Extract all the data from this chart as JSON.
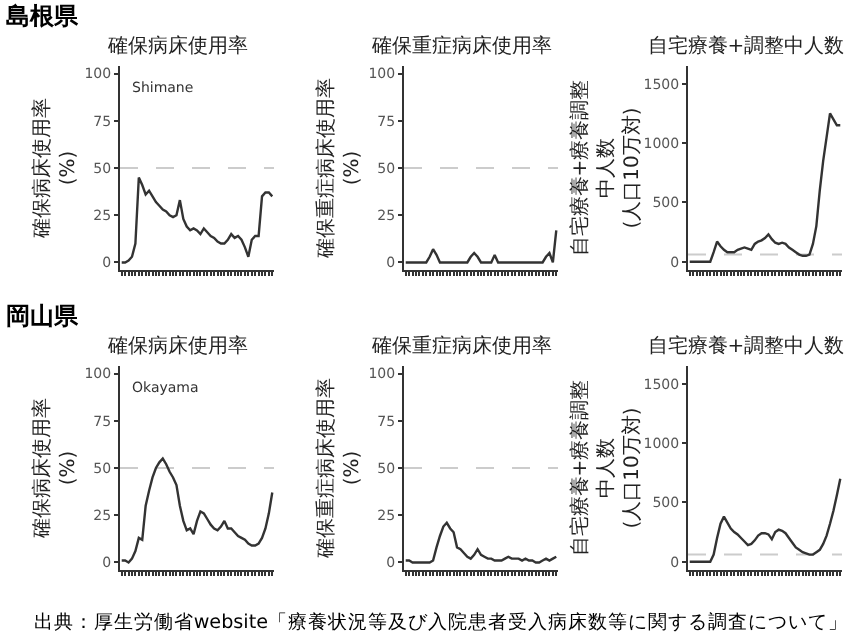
{
  "chart_data": [
    {
      "type": "line",
      "title": "確保病床使用率",
      "ylabel": "確保病床使用率(%)",
      "annotations": [
        "島根県",
        "Shimane"
      ],
      "tick_labels": "y",
      "color": "#333333",
      "categories": [
        null,
        null,
        null,
        null,
        null,
        null,
        null,
        null,
        null,
        null,
        null,
        null,
        null,
        null,
        null,
        null,
        null,
        null,
        null,
        null,
        null,
        null,
        null,
        null,
        null,
        null,
        null,
        null,
        null,
        null,
        null,
        null,
        null,
        null,
        null,
        null,
        null,
        null,
        null,
        null,
        null,
        null,
        null,
        null,
        null
      ],
      "values": [
        0,
        0,
        1,
        3,
        10,
        45,
        41,
        36,
        38,
        35,
        32,
        30,
        28,
        27,
        25,
        24,
        25,
        33,
        23,
        19,
        17,
        18,
        17,
        15,
        18,
        16,
        14,
        13,
        11,
        10,
        10,
        12,
        15,
        13,
        14,
        12,
        8,
        3,
        12,
        14,
        14,
        35,
        37,
        37,
        35
      ],
      "ylim": [
        -4,
        104
      ],
      "yticks": [
        0,
        25,
        50,
        75,
        100
      ],
      "ref_lines": [
        {
          "axis": "y",
          "value": 50,
          "label": null,
          "color": "#cccccc",
          "line_style": "dashed"
        }
      ]
    },
    {
      "type": "line",
      "title": "確保重症病床使用率",
      "ylabel": "確保重症病床使用率(%)",
      "tick_labels": "y",
      "color": "#333333",
      "categories": [
        null,
        null,
        null,
        null,
        null,
        null,
        null,
        null,
        null,
        null,
        null,
        null,
        null,
        null,
        null,
        null,
        null,
        null,
        null,
        null,
        null,
        null,
        null,
        null,
        null,
        null,
        null,
        null,
        null,
        null,
        null,
        null,
        null,
        null,
        null,
        null,
        null,
        null,
        null,
        null,
        null,
        null,
        null,
        null,
        null
      ],
      "values": [
        0,
        0,
        0,
        0,
        0,
        0,
        0,
        3,
        7,
        4,
        0,
        0,
        0,
        0,
        0,
        0,
        0,
        0,
        0,
        3,
        5,
        3,
        0,
        0,
        0,
        0,
        4,
        0,
        0,
        0,
        0,
        0,
        0,
        0,
        0,
        0,
        0,
        0,
        0,
        0,
        0,
        3,
        5,
        0,
        17
      ],
      "ylim": [
        -4,
        104
      ],
      "yticks": [
        0,
        25,
        50,
        75,
        100
      ],
      "ref_lines": [
        {
          "axis": "y",
          "value": 50,
          "label": null,
          "color": "#cccccc",
          "line_style": "dashed"
        }
      ]
    },
    {
      "type": "line",
      "title": "自宅療養+調整中人数",
      "ylabel": "自宅療養+療養調整中人数(人口10万対)",
      "tick_labels": "y",
      "color": "#333333",
      "categories": [
        null,
        null,
        null,
        null,
        null,
        null,
        null,
        null,
        null,
        null,
        null,
        null,
        null,
        null,
        null,
        null,
        null,
        null,
        null,
        null,
        null,
        null,
        null,
        null,
        null,
        null,
        null,
        null,
        null,
        null,
        null,
        null,
        null,
        null,
        null,
        null,
        null,
        null,
        null,
        null,
        null,
        null,
        null,
        null,
        null
      ],
      "values": [
        0,
        0,
        0,
        0,
        0,
        0,
        0,
        80,
        170,
        130,
        100,
        80,
        80,
        80,
        100,
        110,
        120,
        110,
        100,
        150,
        170,
        180,
        200,
        230,
        190,
        160,
        150,
        160,
        150,
        120,
        100,
        80,
        60,
        50,
        50,
        60,
        150,
        300,
        600,
        850,
        1050,
        1250,
        1200,
        1150,
        1150
      ],
      "ylim": [
        -70,
        1650
      ],
      "yticks": [
        0,
        500,
        1000,
        1500
      ],
      "ref_lines": [
        {
          "axis": "y",
          "value": 60,
          "label": null,
          "color": "#cccccc",
          "line_style": "dashed"
        }
      ]
    },
    {
      "type": "line",
      "title": "確保病床使用率",
      "ylabel": "確保病床使用率(%)",
      "annotations": [
        "岡山県",
        "Okayama"
      ],
      "tick_labels": "y",
      "color": "#333333",
      "categories": [
        null,
        null,
        null,
        null,
        null,
        null,
        null,
        null,
        null,
        null,
        null,
        null,
        null,
        null,
        null,
        null,
        null,
        null,
        null,
        null,
        null,
        null,
        null,
        null,
        null,
        null,
        null,
        null,
        null,
        null,
        null,
        null,
        null,
        null,
        null,
        null,
        null,
        null,
        null,
        null,
        null,
        null,
        null,
        null,
        null
      ],
      "values": [
        1,
        1,
        0,
        2,
        6,
        13,
        12,
        30,
        38,
        45,
        50,
        53,
        55,
        52,
        48,
        45,
        41,
        30,
        22,
        17,
        18,
        15,
        22,
        27,
        26,
        23,
        20,
        18,
        17,
        19,
        22,
        18,
        18,
        16,
        14,
        13,
        12,
        10,
        9,
        9,
        10,
        13,
        18,
        26,
        37
      ],
      "ylim": [
        -4,
        104
      ],
      "yticks": [
        0,
        25,
        50,
        75,
        100
      ],
      "ref_lines": [
        {
          "axis": "y",
          "value": 50,
          "label": null,
          "color": "#cccccc",
          "line_style": "dashed"
        }
      ]
    },
    {
      "type": "line",
      "title": "確保重症病床使用率",
      "ylabel": "確保重症病床使用率(%)",
      "tick_labels": "y",
      "color": "#333333",
      "categories": [
        null,
        null,
        null,
        null,
        null,
        null,
        null,
        null,
        null,
        null,
        null,
        null,
        null,
        null,
        null,
        null,
        null,
        null,
        null,
        null,
        null,
        null,
        null,
        null,
        null,
        null,
        null,
        null,
        null,
        null,
        null,
        null,
        null,
        null,
        null,
        null,
        null,
        null,
        null,
        null,
        null,
        null,
        null,
        null,
        null
      ],
      "values": [
        1,
        1,
        0,
        0,
        0,
        0,
        0,
        0,
        1,
        8,
        14,
        19,
        21,
        18,
        16,
        8,
        7,
        5,
        3,
        2,
        4,
        7,
        4,
        3,
        2,
        2,
        1,
        1,
        1,
        2,
        3,
        2,
        2,
        2,
        1,
        2,
        1,
        1,
        0,
        0,
        1,
        2,
        1,
        2,
        3
      ],
      "ylim": [
        -4,
        104
      ],
      "yticks": [
        0,
        25,
        50,
        75,
        100
      ],
      "ref_lines": [
        {
          "axis": "y",
          "value": 50,
          "label": null,
          "color": "#cccccc",
          "line_style": "dashed"
        }
      ]
    },
    {
      "type": "line",
      "title": "自宅療養+調整中人数",
      "ylabel": "自宅療養+療養調整中人数(人口10万対)",
      "annotations": [
        "出典：厚生労働省website「療養状況等及び入院患者受入病床数等に関する調査について」"
      ],
      "tick_labels": "y",
      "color": "#333333",
      "categories": [
        null,
        null,
        null,
        null,
        null,
        null,
        null,
        null,
        null,
        null,
        null,
        null,
        null,
        null,
        null,
        null,
        null,
        null,
        null,
        null,
        null,
        null,
        null,
        null,
        null,
        null,
        null,
        null,
        null,
        null,
        null,
        null,
        null,
        null,
        null,
        null,
        null,
        null,
        null,
        null,
        null,
        null,
        null,
        null,
        null
      ],
      "values": [
        0,
        0,
        0,
        0,
        0,
        0,
        0,
        60,
        200,
        320,
        380,
        330,
        280,
        250,
        230,
        200,
        170,
        140,
        150,
        180,
        220,
        240,
        240,
        230,
        190,
        250,
        270,
        260,
        240,
        200,
        160,
        120,
        100,
        80,
        70,
        60,
        60,
        80,
        100,
        150,
        220,
        320,
        430,
        560,
        700
      ],
      "ylim": [
        -70,
        1650
      ],
      "yticks": [
        0,
        500,
        1000,
        1500
      ],
      "ref_lines": [
        {
          "axis": "y",
          "value": 60,
          "label": null,
          "color": "#cccccc",
          "line_style": "dashed"
        }
      ]
    }
  ]
}
